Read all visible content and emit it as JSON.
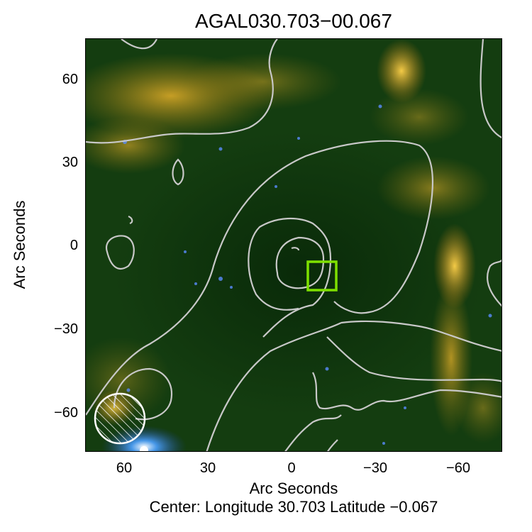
{
  "title": "AGAL030.703−00.067",
  "axes": {
    "ylabel": "Arc Seconds",
    "xlabel": "Arc Seconds",
    "y_ticks": [
      "60",
      "30",
      "0",
      "−30",
      "−60"
    ],
    "x_ticks": [
      "60",
      "30",
      "0",
      "−30",
      "−60"
    ]
  },
  "center_note": "Center:  Longitude 30.703 Latitude −0.067",
  "colors": {
    "background": "#0f3a0c",
    "contour": "#c8c8c8",
    "marker": "#7ee000",
    "beam": "#ffffff",
    "emission": "#e6a11c"
  },
  "icons": {
    "marker": "green-square-marker",
    "beam": "hatched-beam-circle"
  }
}
